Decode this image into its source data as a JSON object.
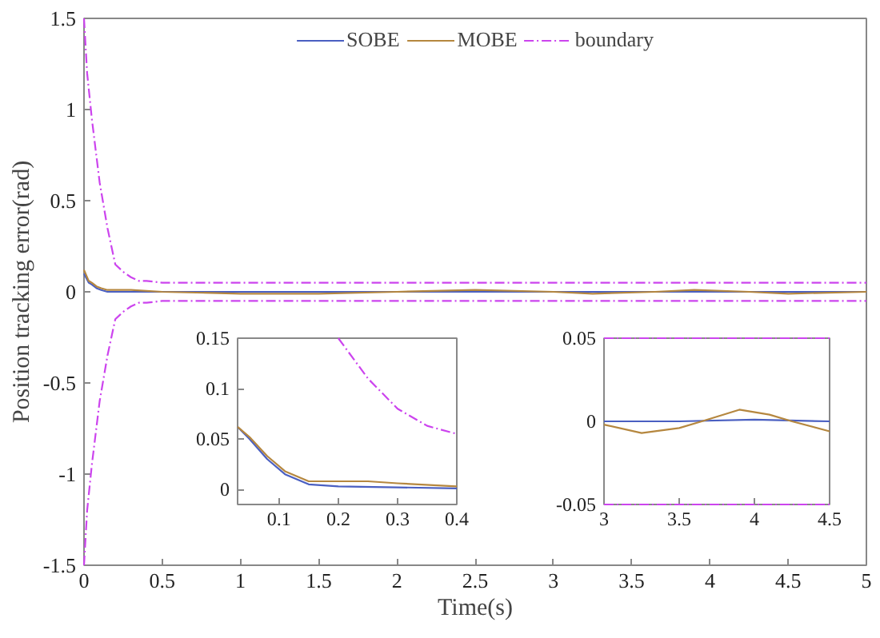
{
  "chart_data": [
    {
      "type": "line",
      "xlabel": "Time(s)",
      "ylabel": "Position tracking error(rad)",
      "xlim": [
        0,
        5
      ],
      "ylim": [
        -1.5,
        1.5
      ],
      "xticks": [
        0,
        0.5,
        1,
        1.5,
        2,
        2.5,
        3,
        3.5,
        4,
        4.5,
        5
      ],
      "yticks": [
        -1.5,
        -1,
        -0.5,
        0,
        0.5,
        1,
        1.5
      ],
      "legend": "top",
      "series": [
        {
          "name": "SOBE",
          "color": "#4a5fc1",
          "line_style": "solid",
          "x": [
            0,
            0.03,
            0.05,
            0.08,
            0.11,
            0.15,
            0.2,
            0.5,
            1,
            2,
            3,
            4,
            5
          ],
          "values": [
            0.1,
            0.05,
            0.04,
            0.02,
            0.01,
            0,
            0,
            0,
            0,
            0,
            0,
            0,
            0
          ]
        },
        {
          "name": "MOBE",
          "color": "#b5873f",
          "line_style": "solid",
          "x": [
            0,
            0.03,
            0.05,
            0.08,
            0.11,
            0.15,
            0.3,
            0.5,
            1,
            1.5,
            2,
            2.5,
            3,
            3.25,
            3.65,
            3.9,
            4.25,
            4.5,
            5
          ],
          "values": [
            0.12,
            0.06,
            0.05,
            0.03,
            0.02,
            0.01,
            0.01,
            0,
            -0.01,
            -0.01,
            0,
            0.01,
            0,
            -0.01,
            0,
            0.01,
            0,
            -0.01,
            0
          ]
        },
        {
          "name": "boundary",
          "color": "#cc44ee",
          "line_style": "dashed",
          "x": [
            0,
            0.02,
            0.05,
            0.1,
            0.15,
            0.2,
            0.25,
            0.3,
            0.35,
            0.4,
            0.5,
            1,
            5
          ],
          "values": [
            1.5,
            1.2,
            0.95,
            0.6,
            0.35,
            0.15,
            0.11,
            0.08,
            0.06,
            0.06,
            0.05,
            0.05,
            0.05
          ]
        },
        {
          "color": "#cc44ee",
          "line_style": "dashed",
          "x": [
            0,
            0.02,
            0.05,
            0.1,
            0.15,
            0.2,
            0.25,
            0.3,
            0.35,
            0.4,
            0.5,
            1,
            5
          ],
          "values": [
            -1.5,
            -1.2,
            -0.95,
            -0.6,
            -0.35,
            -0.15,
            -0.11,
            -0.08,
            -0.06,
            -0.06,
            -0.05,
            -0.05,
            -0.05
          ]
        }
      ]
    },
    {
      "type": "line",
      "xlim": [
        0.03,
        0.4
      ],
      "ylim": [
        -0.015,
        0.15
      ],
      "xticks": [
        0.1,
        0.2,
        0.3,
        0.4
      ],
      "yticks": [
        0,
        0.05,
        0.1,
        0.15
      ],
      "series": [
        {
          "color": "#4a5fc1",
          "line_style": "solid",
          "x": [
            0.03,
            0.05,
            0.08,
            0.11,
            0.15,
            0.2,
            0.3,
            0.4
          ],
          "values": [
            0.062,
            0.05,
            0.03,
            0.015,
            0.005,
            0.003,
            0.002,
            0.001
          ]
        },
        {
          "color": "#b5873f",
          "line_style": "solid",
          "x": [
            0.03,
            0.05,
            0.08,
            0.11,
            0.15,
            0.2,
            0.25,
            0.3,
            0.4
          ],
          "values": [
            0.062,
            0.052,
            0.033,
            0.018,
            0.008,
            0.008,
            0.008,
            0.006,
            0.003
          ]
        },
        {
          "color": "#cc44ee",
          "line_style": "dashed",
          "x": [
            0.2,
            0.25,
            0.3,
            0.35,
            0.4
          ],
          "values": [
            0.15,
            0.11,
            0.08,
            0.063,
            0.055
          ]
        }
      ]
    },
    {
      "type": "line",
      "xlim": [
        3,
        4.5
      ],
      "ylim": [
        -0.05,
        0.05
      ],
      "xticks": [
        3,
        3.5,
        4,
        4.5
      ],
      "yticks": [
        -0.05,
        0,
        0.05
      ],
      "series": [
        {
          "color": "#4a5fc1",
          "line_style": "solid",
          "x": [
            3,
            3.5,
            4,
            4.5
          ],
          "values": [
            0,
            0,
            0.001,
            0
          ]
        },
        {
          "color": "#b5873f",
          "line_style": "solid",
          "x": [
            3,
            3.25,
            3.5,
            3.65,
            3.9,
            4.1,
            4.25,
            4.5
          ],
          "values": [
            -0.002,
            -0.007,
            -0.004,
            0,
            0.007,
            0.004,
            0,
            -0.006
          ]
        },
        {
          "color": "#cc44ee",
          "line_style": "dashed",
          "x": [
            3,
            4.5
          ],
          "values": [
            0.05,
            0.05
          ]
        },
        {
          "color": "#cc44ee",
          "line_style": "dashed",
          "x": [
            3,
            4.5
          ],
          "values": [
            -0.05,
            -0.05
          ]
        }
      ]
    }
  ]
}
